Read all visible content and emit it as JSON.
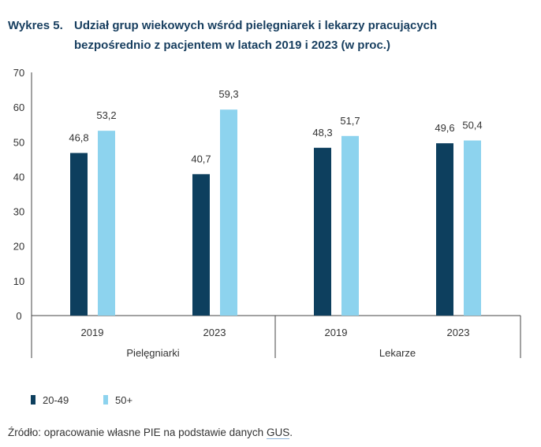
{
  "title": {
    "number": "Wykres 5.",
    "text": "Udział grup wiekowych wśród pielęgniarek i lekarzy pracujących bezpośrednio z pacjentem w latach 2019 i 2023 (w proc.)"
  },
  "source": {
    "prefix": "Źródło: opracowanie własne PIE na podstawie danych ",
    "link": "GUS",
    "suffix": "."
  },
  "colors": {
    "series_20_49": "#0d3f5e",
    "series_50_plus": "#8dd3ee",
    "title": "#173e5f"
  },
  "chart_data": {
    "type": "bar",
    "title": "Udział grup wiekowych wśród pielęgniarek i lekarzy pracujących bezpośrednio z pacjentem w latach 2019 i 2023 (w proc.)",
    "groups": [
      "Pielęgniarki",
      "Lekarze"
    ],
    "categories": [
      "2019",
      "2023",
      "2019",
      "2023"
    ],
    "series": [
      {
        "name": "20-49",
        "values": [
          46.8,
          40.7,
          48.3,
          49.6
        ],
        "labels": [
          "46,8",
          "40,7",
          "48,3",
          "49,6"
        ]
      },
      {
        "name": "50+",
        "values": [
          53.2,
          59.3,
          51.7,
          50.4
        ],
        "labels": [
          "53,2",
          "59,3",
          "51,7",
          "50,4"
        ]
      }
    ],
    "ylim": [
      0,
      70
    ],
    "yticks": [
      "0",
      "10",
      "20",
      "30",
      "40",
      "50",
      "60",
      "70"
    ],
    "xlabel": "",
    "ylabel": "",
    "grid": false,
    "legend_position": "bottom-left"
  }
}
